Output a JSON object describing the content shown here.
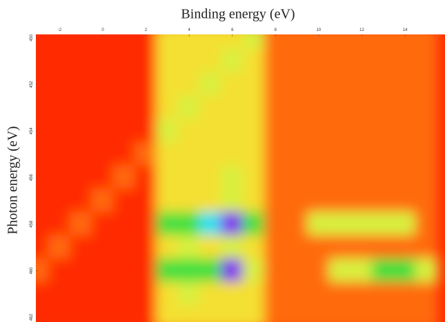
{
  "chart_data": {
    "type": "heatmap",
    "x_label": "Binding energy (eV)",
    "y_label": "Photon energy (eV)",
    "x": [
      -3,
      -2,
      -1,
      0,
      1,
      2,
      3,
      4,
      5,
      6,
      7,
      8,
      9,
      10,
      11,
      12,
      13,
      14,
      15
    ],
    "y": [
      450,
      451,
      452,
      453,
      454,
      455,
      456,
      457,
      458,
      459,
      460,
      461,
      462
    ],
    "z": [
      [
        0,
        0,
        0,
        0,
        0,
        0,
        2,
        2,
        2,
        2,
        3,
        1,
        1,
        1,
        1,
        1,
        1,
        1,
        1
      ],
      [
        0,
        0,
        0,
        0,
        0,
        0,
        2,
        2,
        2,
        3,
        2,
        1,
        1,
        1,
        1,
        1,
        1,
        1,
        1
      ],
      [
        0,
        0,
        0,
        0,
        0,
        0,
        2,
        2,
        3,
        2,
        2,
        1,
        1,
        1,
        1,
        1,
        1,
        1,
        1
      ],
      [
        0,
        0,
        0,
        0,
        0,
        0,
        2,
        3,
        2,
        2,
        2,
        1,
        1,
        1,
        1,
        1,
        1,
        1,
        1
      ],
      [
        0,
        0,
        0,
        0,
        0,
        0,
        3,
        2,
        2,
        2,
        2,
        1,
        1,
        1,
        1,
        1,
        1,
        1,
        1
      ],
      [
        0,
        0,
        0,
        0,
        0,
        1,
        2,
        2,
        2,
        2,
        2,
        1,
        1,
        1,
        1,
        1,
        1,
        1,
        1
      ],
      [
        0,
        0,
        0,
        0,
        1,
        0,
        2,
        2,
        2,
        3,
        2,
        1,
        1,
        1,
        1,
        1,
        1,
        1,
        1
      ],
      [
        0,
        0,
        0,
        1,
        0,
        0,
        2,
        2,
        2,
        3,
        2,
        1,
        1,
        1,
        1,
        1,
        1,
        1,
        1
      ],
      [
        0,
        0,
        1,
        0,
        0,
        0,
        4,
        4,
        5,
        6,
        4,
        1,
        1,
        3,
        3,
        3,
        3,
        3,
        1
      ],
      [
        0,
        1,
        0,
        0,
        0,
        0,
        2,
        3,
        2,
        3,
        2,
        1,
        1,
        1,
        1,
        1,
        1,
        1,
        1
      ],
      [
        1,
        0,
        0,
        0,
        0,
        0,
        4,
        4,
        4,
        6,
        3,
        1,
        1,
        1,
        3,
        3,
        4,
        4,
        3
      ],
      [
        0,
        0,
        0,
        0,
        0,
        0,
        2,
        3,
        2,
        2,
        2,
        1,
        1,
        1,
        1,
        1,
        1,
        1,
        1
      ],
      [
        0,
        0,
        0,
        0,
        0,
        0,
        2,
        2,
        2,
        2,
        2,
        1,
        1,
        1,
        1,
        1,
        1,
        1,
        1
      ]
    ],
    "colormap": [
      "#ff2a00",
      "#ff6a10",
      "#f4e030",
      "#d8f040",
      "#40e040",
      "#20e0f0",
      "#8020f0"
    ],
    "xlim": [
      -3.1,
      15.85
    ],
    "xticks": [
      -2,
      0,
      2,
      4,
      6,
      8,
      10,
      12,
      14
    ],
    "ylim": [
      449.85,
      462.2
    ],
    "yticks": [
      450,
      452,
      454,
      456,
      458,
      460,
      462
    ],
    "y_inverted": true
  }
}
